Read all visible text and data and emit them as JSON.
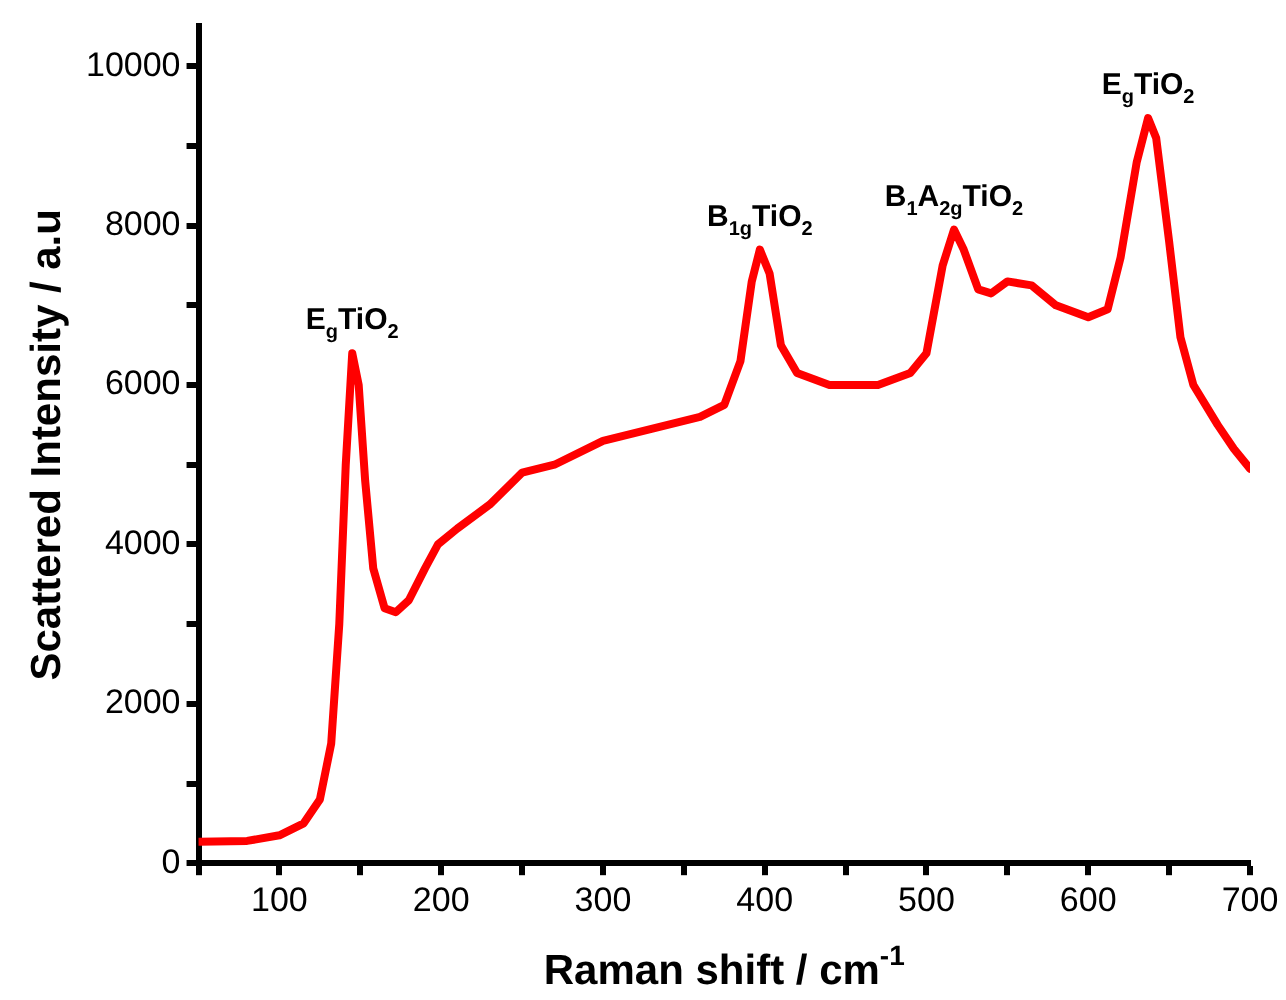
{
  "chart_data": {
    "type": "line",
    "xlabel": "Raman shift / cm$^{-1}$",
    "ylabel": "Scattered Intensity / a.u",
    "x": [
      50,
      80,
      100,
      115,
      125,
      132,
      137,
      141,
      145,
      149,
      153,
      158,
      165,
      172,
      180,
      190,
      198,
      210,
      230,
      250,
      270,
      300,
      330,
      360,
      375,
      385,
      392,
      397,
      403,
      410,
      420,
      440,
      470,
      490,
      500,
      510,
      517,
      523,
      532,
      540,
      550,
      565,
      580,
      600,
      612,
      620,
      630,
      637,
      642,
      650,
      657,
      665,
      680,
      690,
      700
    ],
    "series": [
      {
        "color": "#ff0000",
        "values": [
          270,
          280,
          350,
          500,
          800,
          1500,
          3000,
          5000,
          6400,
          6000,
          4800,
          3700,
          3200,
          3150,
          3300,
          3700,
          4000,
          4200,
          4500,
          4900,
          5000,
          5300,
          5450,
          5600,
          5750,
          6300,
          7300,
          7700,
          7400,
          6500,
          6150,
          6000,
          6000,
          6150,
          6400,
          7500,
          7950,
          7700,
          7200,
          7150,
          7300,
          7250,
          7000,
          6850,
          6950,
          7600,
          8800,
          9350,
          9100,
          7800,
          6600,
          6000,
          5500,
          5200,
          4950
        ]
      }
    ],
    "xlim": [
      50,
      700
    ],
    "xticks": [
      {
        "value": 50,
        "label": null
      },
      100,
      {
        "value": 150,
        "label": null
      },
      200,
      {
        "value": 250,
        "label": null
      },
      300,
      {
        "value": 350,
        "label": null
      },
      400,
      {
        "value": 450,
        "label": null
      },
      500,
      {
        "value": 550,
        "label": null
      },
      600,
      {
        "value": 650,
        "label": null
      },
      700
    ],
    "ylim": [
      0,
      10500
    ],
    "yticks": [
      0,
      {
        "value": 1000,
        "label": null
      },
      2000,
      {
        "value": 3000,
        "label": null
      },
      4000,
      {
        "value": 5000,
        "label": null
      },
      6000,
      {
        "value": 7000,
        "label": null
      },
      8000,
      {
        "value": 9000,
        "label": null
      },
      10000
    ],
    "annotations": [
      {
        "text": "E$_{g}$TiO$_{2}$",
        "x": 145,
        "y": 6400
      },
      {
        "text": "B$_{1g}$TiO$_{2}$",
        "x": 397,
        "y": 7700
      },
      {
        "text": "B$_{1}$A$_{2g}$TiO$_{2}$",
        "x": 517,
        "y": 7950
      },
      {
        "text": "E$_{g}$TiO$_{2}$",
        "x": 637,
        "y": 9350
      }
    ],
    "grid": false,
    "legend": false,
    "marker": "none",
    "line_style": "solid"
  }
}
